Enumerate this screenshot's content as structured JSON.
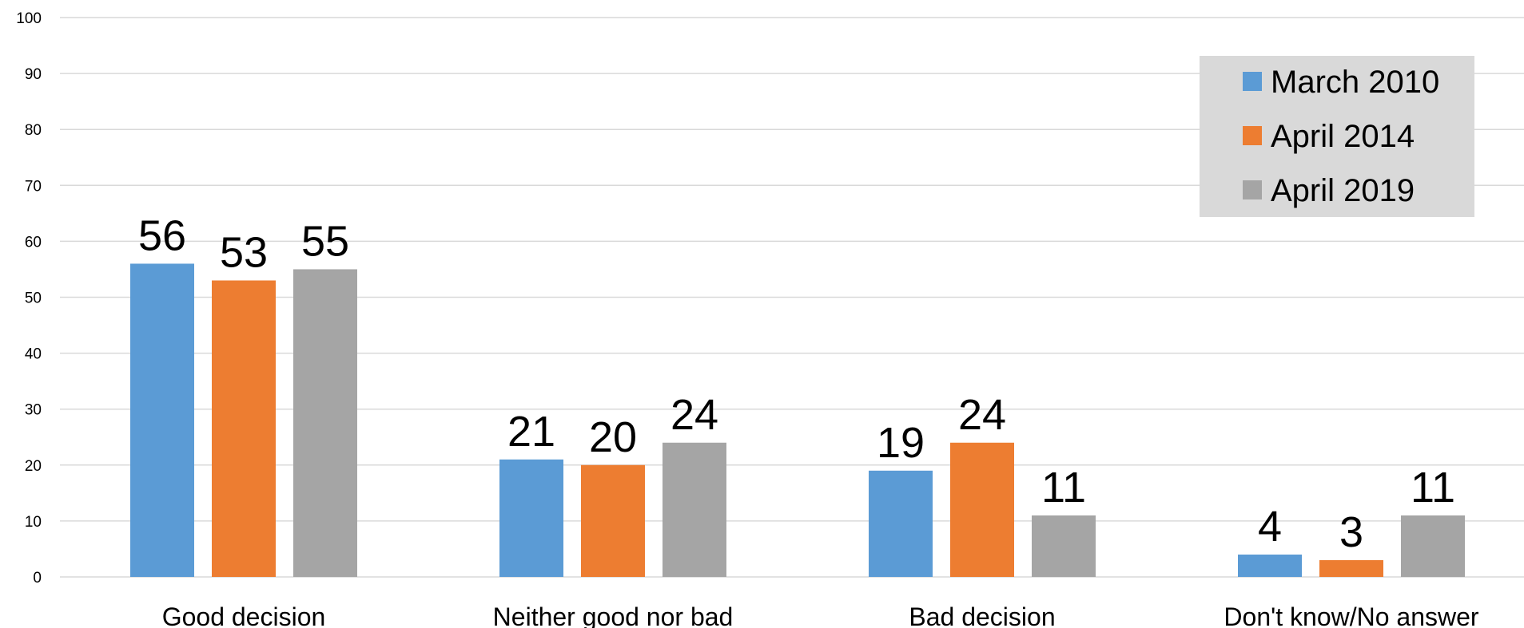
{
  "chart_data": {
    "type": "bar",
    "title": "",
    "xlabel": "",
    "ylabel": "",
    "ylim": [
      0,
      100
    ],
    "yticks": [
      0,
      10,
      20,
      30,
      40,
      50,
      60,
      70,
      80,
      90,
      100
    ],
    "grid": true,
    "legend_position": "top-right",
    "categories": [
      "Good decision",
      "Neither good nor bad",
      "Bad decision",
      "Don't know/No answer"
    ],
    "series": [
      {
        "name": "March 2010",
        "color": "#5b9bd5",
        "values": [
          56,
          21,
          19,
          4
        ]
      },
      {
        "name": "April 2014",
        "color": "#ed7d31",
        "values": [
          53,
          20,
          24,
          3
        ]
      },
      {
        "name": "April 2019",
        "color": "#a5a5a5",
        "values": [
          55,
          24,
          11,
          11
        ]
      }
    ]
  }
}
